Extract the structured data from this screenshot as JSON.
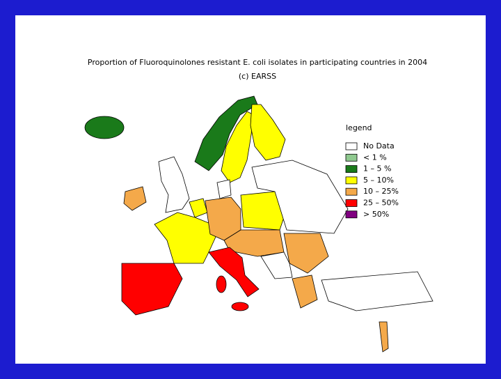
{
  "title": "Proportion of Fluoroquinolones resistant E. coli isolates in participating countries in 2004",
  "subtitle": "(c) EARSS",
  "legend": {
    "title": "legend",
    "items": [
      {
        "label": "No Data",
        "color": "#ffffff"
      },
      {
        "label": "< 1 %",
        "color": "#8fc98f"
      },
      {
        "label": "1 – 5 %",
        "color": "#1a7a1a"
      },
      {
        "label": "5 – 10%",
        "color": "#ffff00"
      },
      {
        "label": "10 – 25%",
        "color": "#f4a94a"
      },
      {
        "label": "25 – 50%",
        "color": "#ff0000"
      },
      {
        "label": "> 50%",
        "color": "#800080"
      }
    ]
  }
}
